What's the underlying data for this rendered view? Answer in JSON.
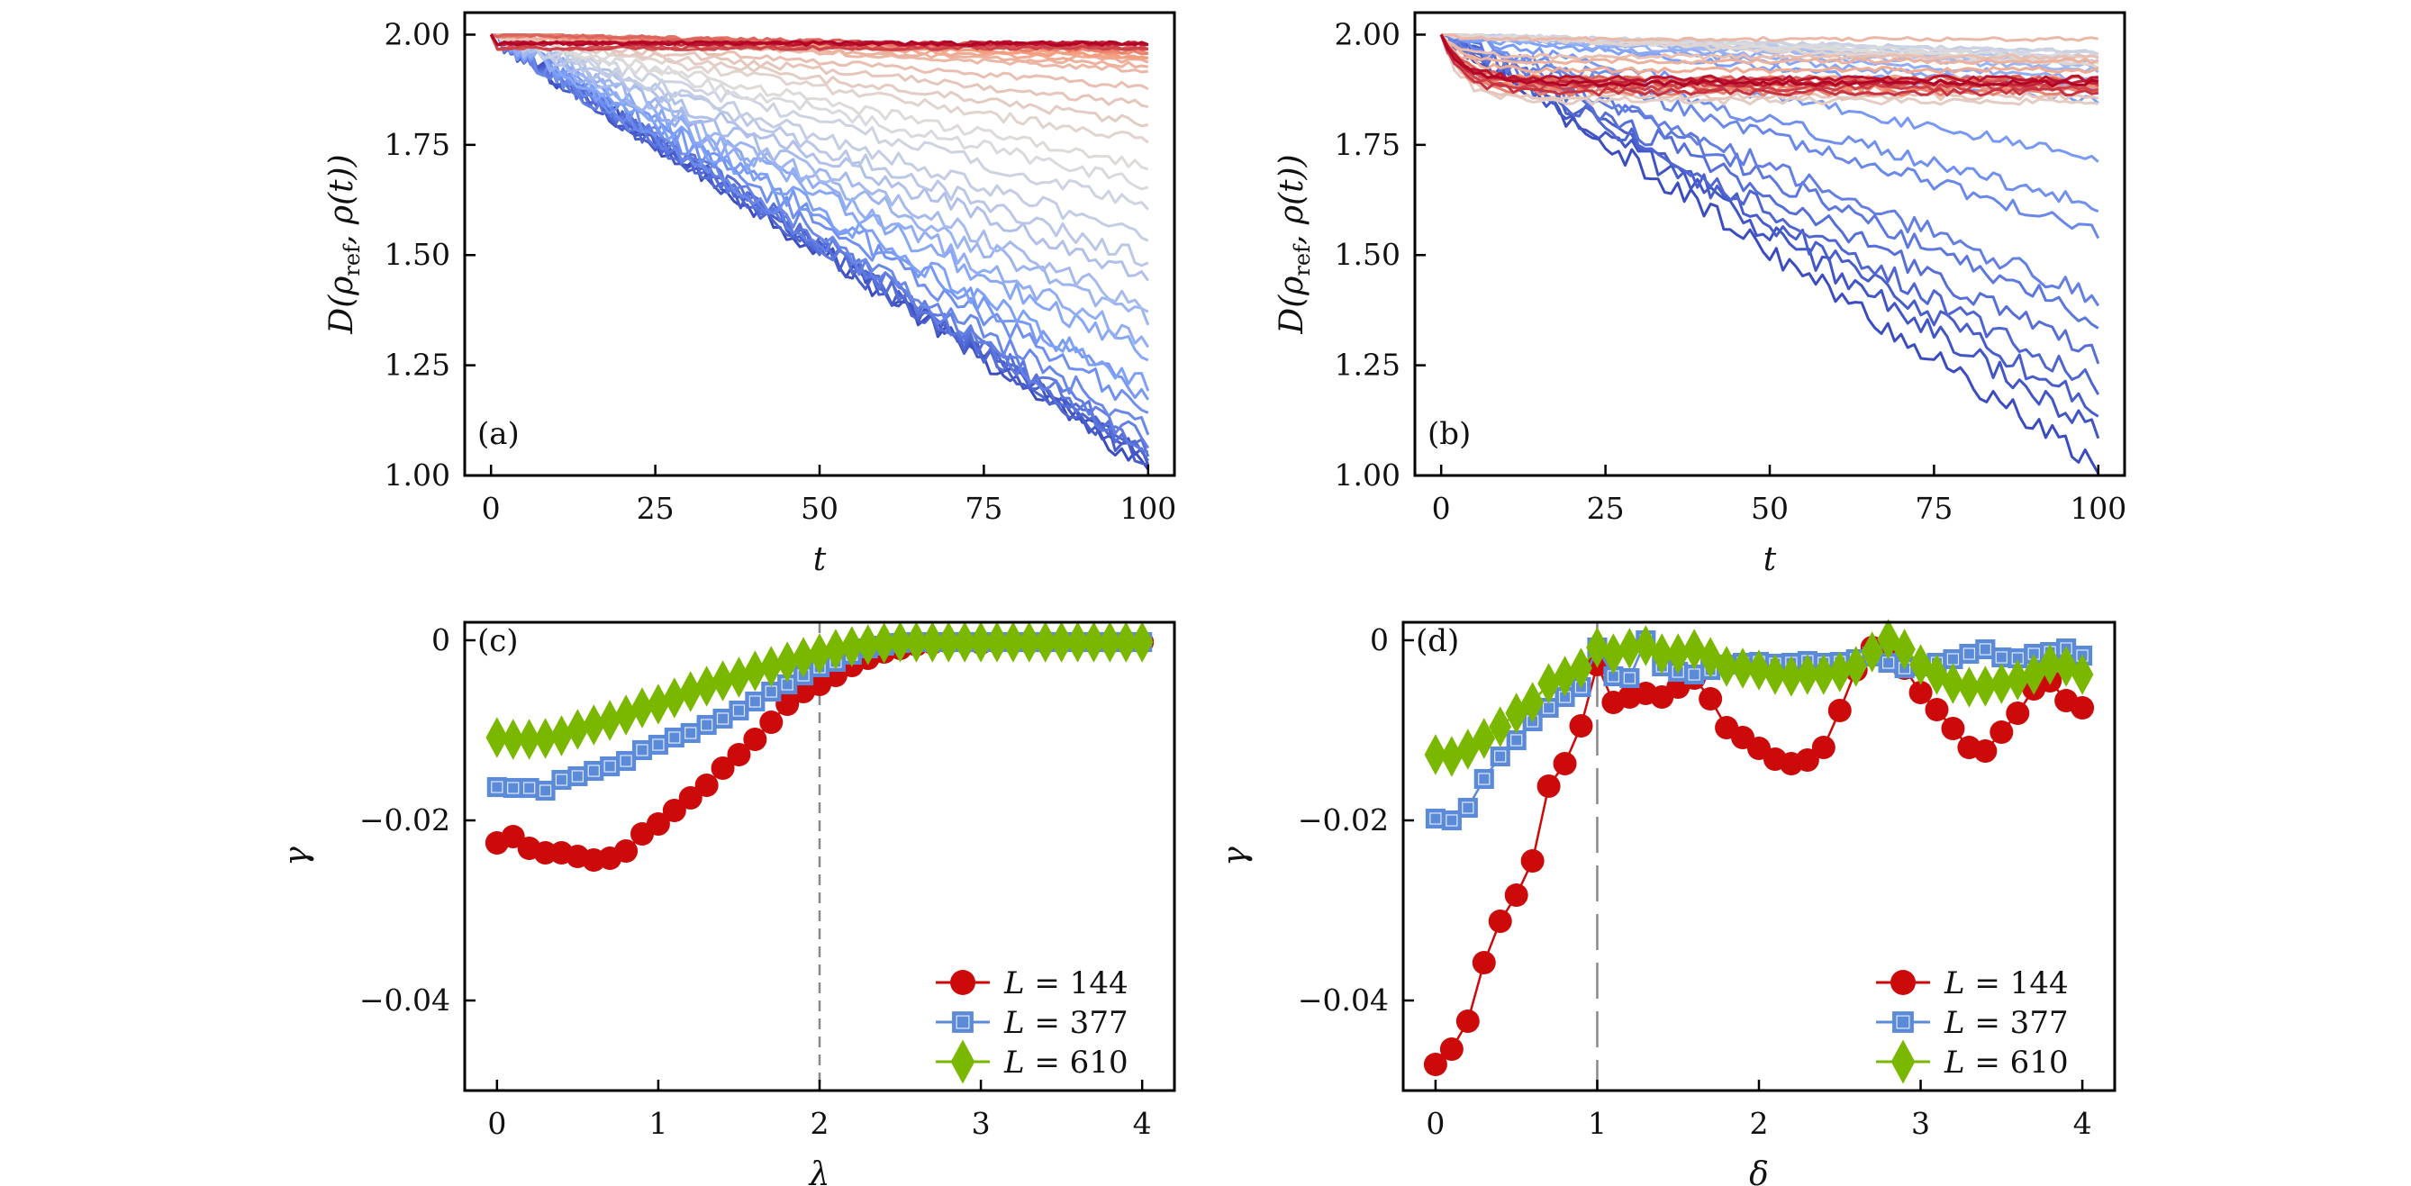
{
  "figure": {
    "panels": [
      "(a)",
      "(b)",
      "(c)",
      "(d)"
    ]
  },
  "chart_data": [
    {
      "id": "a",
      "type": "line",
      "panel_label": "(a)",
      "title": "",
      "xlabel": "t",
      "ylabel": "D(ρ_ref, ρ(t))",
      "ylabel_parts": {
        "main": "D(ρ",
        "sub": "ref",
        "rest": ", ρ(t))"
      },
      "xlim": [
        -4,
        104
      ],
      "ylim": [
        1.0,
        2.05
      ],
      "xticks": [
        0,
        25,
        50,
        75,
        100
      ],
      "xtick_labels": [
        "0",
        "25",
        "50",
        "75",
        "100"
      ],
      "yticks": [
        1.0,
        1.25,
        1.5,
        1.75,
        2.0
      ],
      "ytick_labels": [
        "1.00",
        "1.25",
        "1.50",
        "1.75",
        "2.00"
      ],
      "grid": false,
      "colormap": "coolwarm",
      "x_range": [
        0,
        100
      ],
      "start_value": 2.0,
      "description": "Family of ~40 noisy curves colored blue→red; final values at t=100 listed from blue to red",
      "series_final_values": [
        1.02,
        1.03,
        1.03,
        1.04,
        1.05,
        1.06,
        1.07,
        1.1,
        1.15,
        1.18,
        1.2,
        1.27,
        1.3,
        1.35,
        1.38,
        1.45,
        1.49,
        1.54,
        1.61,
        1.66,
        1.7,
        1.76,
        1.8,
        1.84,
        1.88,
        1.92,
        1.93,
        1.94,
        1.95,
        1.95,
        1.96,
        1.96,
        1.97,
        1.97,
        1.97,
        1.97,
        1.98,
        1.98,
        1.98,
        1.98
      ]
    },
    {
      "id": "b",
      "type": "line",
      "panel_label": "(b)",
      "title": "",
      "xlabel": "t",
      "ylabel": "D(ρ_ref, ρ(t))",
      "ylabel_parts": {
        "main": "D(ρ",
        "sub": "ref",
        "rest": ", ρ(t))"
      },
      "xlim": [
        -4,
        104
      ],
      "ylim": [
        1.0,
        2.05
      ],
      "xticks": [
        0,
        25,
        50,
        75,
        100
      ],
      "xtick_labels": [
        "0",
        "25",
        "50",
        "75",
        "100"
      ],
      "yticks": [
        1.0,
        1.25,
        1.5,
        1.75,
        2.0
      ],
      "ytick_labels": [
        "1.00",
        "1.25",
        "1.50",
        "1.75",
        "2.00"
      ],
      "grid": false,
      "colormap": "coolwarm",
      "x_range": [
        0,
        100
      ],
      "start_value": 2.0,
      "description": "Family of noisy curves; blue curves decay linearly, red curves saturate near 1.85–1.99",
      "series_final_values": [
        1.02,
        1.1,
        1.15,
        1.2,
        1.27,
        1.35,
        1.4,
        1.55,
        1.61,
        1.72,
        1.85,
        1.88,
        1.9,
        1.92,
        1.93,
        1.94,
        1.95,
        1.96,
        1.96,
        1.95,
        1.94,
        1.93,
        1.85,
        1.86,
        1.95,
        1.99,
        1.94,
        1.92,
        1.9,
        1.88,
        1.88,
        1.87,
        1.89,
        1.9,
        1.89,
        1.88,
        1.87,
        1.89,
        1.9,
        1.89
      ]
    },
    {
      "id": "c",
      "type": "line",
      "panel_label": "(c)",
      "title": "",
      "xlabel": "λ",
      "ylabel": "γ",
      "xlim": [
        -0.2,
        4.2
      ],
      "ylim": [
        -0.05,
        0.002
      ],
      "xticks": [
        0,
        1,
        2,
        3,
        4
      ],
      "xtick_labels": [
        "0",
        "1",
        "2",
        "3",
        "4"
      ],
      "yticks": [
        -0.04,
        -0.02,
        0
      ],
      "ytick_labels": [
        "−0.04",
        "−0.02",
        "0"
      ],
      "grid": false,
      "vline": {
        "x": 2,
        "style": "dashed"
      },
      "legend_position": "bottom-right",
      "x": [
        0,
        0.1,
        0.2,
        0.3,
        0.4,
        0.5,
        0.6,
        0.7,
        0.8,
        0.9,
        1.0,
        1.1,
        1.2,
        1.3,
        1.4,
        1.5,
        1.6,
        1.7,
        1.8,
        1.9,
        2.0,
        2.1,
        2.2,
        2.3,
        2.4,
        2.5,
        2.6,
        2.7,
        2.8,
        2.9,
        3.0,
        3.1,
        3.2,
        3.3,
        3.4,
        3.5,
        3.6,
        3.7,
        3.8,
        3.9,
        4.0
      ],
      "series": [
        {
          "name": "L = 144",
          "L": "144",
          "marker": "circle",
          "color": "#cc0a0a",
          "values": [
            -0.0225,
            -0.0218,
            -0.0231,
            -0.0236,
            -0.0236,
            -0.024,
            -0.0244,
            -0.0242,
            -0.0234,
            -0.0215,
            -0.0204,
            -0.0189,
            -0.0175,
            -0.0161,
            -0.0142,
            -0.0127,
            -0.011,
            -0.0091,
            -0.0071,
            -0.0057,
            -0.0049,
            -0.0039,
            -0.0028,
            -0.002,
            -0.0013,
            -0.0009,
            -0.0005,
            -0.0003,
            -0.0002,
            -0.0002,
            -0.0003,
            -0.0002,
            -0.0002,
            -0.0002,
            -0.0002,
            -0.0002,
            -0.0002,
            -0.0002,
            -0.0002,
            -0.0002,
            -0.0002
          ]
        },
        {
          "name": "L = 377",
          "L": "377",
          "marker": "square",
          "color": "#5b8ad8",
          "values": [
            -0.0163,
            -0.0164,
            -0.0164,
            -0.0167,
            -0.0155,
            -0.0151,
            -0.0145,
            -0.014,
            -0.0134,
            -0.0122,
            -0.0116,
            -0.0108,
            -0.0103,
            -0.0094,
            -0.0087,
            -0.0078,
            -0.0068,
            -0.0057,
            -0.0049,
            -0.0039,
            -0.003,
            -0.0024,
            -0.0016,
            -0.0009,
            -0.0006,
            -0.0003,
            -0.0002,
            -0.0002,
            -0.0002,
            -0.0002,
            -0.0002,
            -0.0002,
            -0.0002,
            -0.0002,
            -0.0002,
            -0.0002,
            -0.0002,
            -0.0002,
            -0.0002,
            -0.0002,
            -0.0002
          ]
        },
        {
          "name": "L = 610",
          "L": "610",
          "marker": "diamond",
          "color": "#7ab800",
          "values": [
            -0.0108,
            -0.011,
            -0.011,
            -0.0109,
            -0.0106,
            -0.0099,
            -0.0094,
            -0.0089,
            -0.0083,
            -0.0075,
            -0.0071,
            -0.0064,
            -0.0057,
            -0.0051,
            -0.0045,
            -0.0041,
            -0.0034,
            -0.0029,
            -0.0024,
            -0.0019,
            -0.0015,
            -0.001,
            -0.0007,
            -0.0005,
            -0.0003,
            -0.0002,
            -0.0002,
            -0.0002,
            -0.0002,
            -0.0002,
            -0.0002,
            -0.0002,
            -0.0002,
            -0.0002,
            -0.0002,
            -0.0002,
            -0.0002,
            -0.0002,
            -0.0002,
            -0.0002,
            -0.0002
          ]
        }
      ]
    },
    {
      "id": "d",
      "type": "line",
      "panel_label": "(d)",
      "title": "",
      "xlabel": "δ",
      "ylabel": "γ",
      "xlim": [
        -0.2,
        4.2
      ],
      "ylim": [
        -0.05,
        0.002
      ],
      "xticks": [
        0,
        1,
        2,
        3,
        4
      ],
      "xtick_labels": [
        "0",
        "1",
        "2",
        "3",
        "4"
      ],
      "yticks": [
        -0.04,
        -0.02,
        0
      ],
      "ytick_labels": [
        "−0.04",
        "−0.02",
        "0"
      ],
      "grid": false,
      "vline": {
        "x": 1,
        "style": "long-dashed"
      },
      "legend_position": "bottom-right",
      "x": [
        0,
        0.1,
        0.2,
        0.3,
        0.4,
        0.5,
        0.6,
        0.7,
        0.8,
        0.9,
        1.0,
        1.1,
        1.2,
        1.3,
        1.4,
        1.5,
        1.6,
        1.7,
        1.8,
        1.9,
        2.0,
        2.1,
        2.2,
        2.3,
        2.4,
        2.5,
        2.6,
        2.7,
        2.8,
        2.9,
        3.0,
        3.1,
        3.2,
        3.3,
        3.4,
        3.5,
        3.6,
        3.7,
        3.8,
        3.9,
        4.0
      ],
      "series": [
        {
          "name": "L = 144",
          "L": "144",
          "marker": "circle",
          "color": "#cc0a0a",
          "values": [
            -0.0471,
            -0.0454,
            -0.0423,
            -0.0358,
            -0.0312,
            -0.0283,
            -0.0245,
            -0.0162,
            -0.0137,
            -0.0095,
            -0.0027,
            -0.0069,
            -0.0063,
            -0.0059,
            -0.0063,
            -0.0052,
            -0.0042,
            -0.0065,
            -0.0097,
            -0.0108,
            -0.012,
            -0.0132,
            -0.0137,
            -0.0133,
            -0.0119,
            -0.0078,
            -0.0033,
            -0.0008,
            -0.0019,
            -0.0031,
            -0.0058,
            -0.0077,
            -0.0098,
            -0.0119,
            -0.0123,
            -0.0102,
            -0.0081,
            -0.0054,
            -0.0045,
            -0.0067,
            -0.0075
          ]
        },
        {
          "name": "L = 377",
          "L": "377",
          "marker": "square",
          "color": "#5b8ad8",
          "values": [
            -0.0198,
            -0.02,
            -0.0186,
            -0.0154,
            -0.0129,
            -0.0111,
            -0.009,
            -0.0075,
            -0.0063,
            -0.0052,
            -0.0008,
            -0.004,
            -0.0042,
            0.0,
            -0.0029,
            -0.0035,
            -0.0038,
            -0.0033,
            -0.0027,
            -0.0025,
            -0.0024,
            -0.0026,
            -0.0025,
            -0.0023,
            -0.0025,
            -0.0024,
            -0.0021,
            -0.0018,
            -0.0025,
            -0.0031,
            -0.0029,
            -0.0025,
            -0.0021,
            -0.0015,
            -0.001,
            -0.0019,
            -0.002,
            -0.0015,
            -0.0013,
            -0.0009,
            -0.0017
          ]
        },
        {
          "name": "L = 610",
          "L": "610",
          "marker": "diamond",
          "color": "#7ab800",
          "values": [
            -0.0127,
            -0.0129,
            -0.0121,
            -0.0109,
            -0.0096,
            -0.0081,
            -0.0069,
            -0.0048,
            -0.004,
            -0.0031,
            -0.0008,
            -0.0015,
            -0.0009,
            -0.0006,
            -0.0015,
            -0.0015,
            -0.001,
            -0.0019,
            -0.0029,
            -0.0031,
            -0.0033,
            -0.0038,
            -0.004,
            -0.0038,
            -0.0038,
            -0.0035,
            -0.0029,
            -0.0013,
            0.0001,
            -0.001,
            -0.0027,
            -0.0038,
            -0.0048,
            -0.0052,
            -0.0051,
            -0.0048,
            -0.0044,
            -0.0038,
            -0.0027,
            -0.0029,
            -0.0038
          ]
        }
      ]
    }
  ]
}
